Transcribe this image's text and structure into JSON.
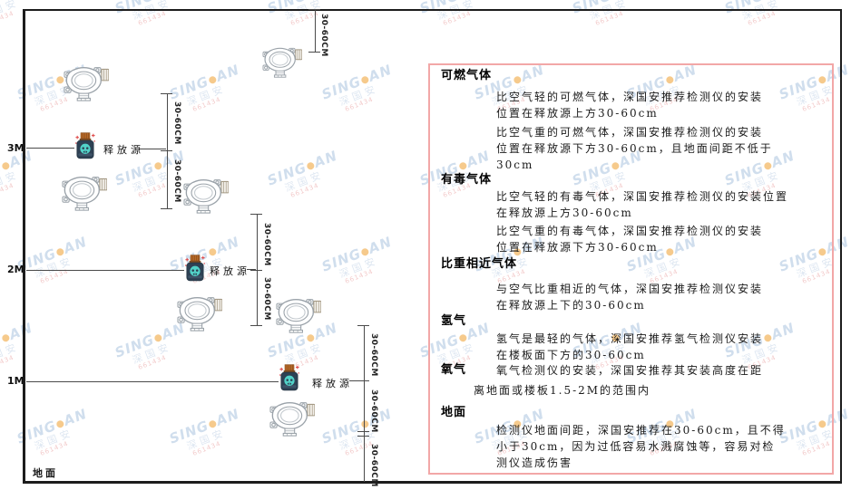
{
  "diagram": {
    "heights": [
      "3M",
      "2M",
      "1M"
    ],
    "ground_label": "地面",
    "source_label": "释放源",
    "dim_label": "30-60CM"
  },
  "panel": {
    "sections": [
      {
        "heading": "可燃气体",
        "paras": [
          [
            "比空气轻的可燃气体，深国安推荐检测仪的安装",
            "位置在释放源上方30-60cm"
          ],
          [
            "比空气重的可燃气体，深国安推荐检测仪的安装",
            "位置在释放源下方30-60cm，且地面间距不低于",
            "30cm"
          ]
        ]
      },
      {
        "heading": "有毒气体",
        "paras": [
          [
            "比空气轻的有毒气体，深国安推荐检测仪的安装位置",
            "在释放源上方30-60cm"
          ],
          [
            "比空气重的有毒气体，深国安推荐检测仪的安装",
            "位置在释放源下方30-60cm"
          ]
        ]
      },
      {
        "heading": "比重相近气体",
        "paras": [
          [
            "与空气比重相近的气体，深国安推荐检测仪安装",
            "在释放源上下的30-60cm"
          ]
        ]
      },
      {
        "heading": "氢气",
        "paras": [
          [
            "氢气是最轻的气体，深国安推荐氢气检测仪安装",
            "在楼板面下方的30-60cm"
          ]
        ]
      },
      {
        "heading": "氧气",
        "paras": [
          [
            "氧气检测仪的安装，深国安推荐其安装高度在距",
            "离地面或楼板1.5-2M的范围内"
          ]
        ]
      },
      {
        "heading": "地面",
        "paras": [
          [
            "检测仪地面间距，深国安推荐在30-60cm，且不得",
            "小于30cm，因为过低容易水溅腐蚀等，容易对检",
            "测仪造成伤害"
          ]
        ]
      }
    ]
  },
  "watermark": {
    "brand_left": "SING",
    "brand_right": "AN",
    "cjk": "深国安",
    "code": "661434"
  },
  "colors": {
    "panel_border": "#f2a7a7",
    "source_body": "#2e4154",
    "source_face": "#52d2c8",
    "source_cap": "#b96a28",
    "sparkle": "#e05050",
    "watermark_blue": "#aac4e0",
    "watermark_dot": "#f0a030",
    "line": "#4a4a4a"
  }
}
